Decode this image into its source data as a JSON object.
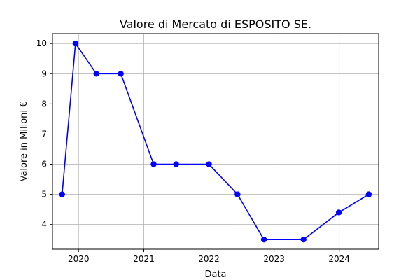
{
  "chart_data": {
    "type": "line",
    "title": "Valore di Mercato di ESPOSITO SE.",
    "xlabel": "Data",
    "ylabel": "Valore in Milioni €",
    "x": [
      "2019-10-01",
      "2019-12-15",
      "2020-04-10",
      "2020-08-25",
      "2021-02-25",
      "2021-07-01",
      "2022-01-01",
      "2022-06-10",
      "2022-11-05",
      "2023-06-15",
      "2023-12-30",
      "2024-06-15"
    ],
    "series": [
      {
        "values": [
          5,
          10,
          9,
          9,
          6,
          6,
          6,
          5,
          3.5,
          3.5,
          4.4,
          5
        ]
      }
    ],
    "xticks": [
      "2020",
      "2021",
      "2022",
      "2023",
      "2024"
    ],
    "yticks": [
      4,
      5,
      6,
      7,
      8,
      9,
      10
    ],
    "xlim": [
      "2019-08-08",
      "2024-08-09"
    ],
    "ylim": [
      3.18,
      10.33
    ],
    "grid": true,
    "legend": "none",
    "colors": {
      "line": "#0000ff",
      "marker": "#0000ff",
      "grid": "#b0b0b0",
      "axes": "#000000"
    }
  }
}
